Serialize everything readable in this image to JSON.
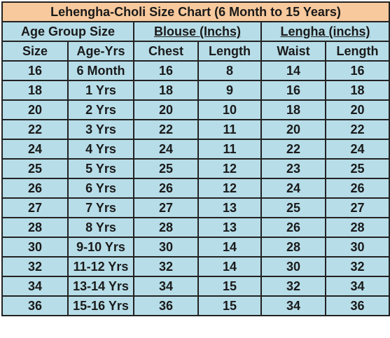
{
  "title": "Lehengha-Choli Size Chart  (6 Month to 15 Years)",
  "groups": {
    "age": "Age Group Size",
    "blouse": "Blouse (Inchs)",
    "lengha": "Lengha (inchs)"
  },
  "columns": [
    "Size",
    "Age-Yrs",
    "Chest",
    "Length",
    "Waist",
    "Length"
  ],
  "rows": [
    [
      "16",
      "6 Month",
      "16",
      "8",
      "14",
      "16"
    ],
    [
      "18",
      "1 Yrs",
      "18",
      "9",
      "16",
      "18"
    ],
    [
      "20",
      "2 Yrs",
      "20",
      "10",
      "18",
      "20"
    ],
    [
      "22",
      "3 Yrs",
      "22",
      "11",
      "20",
      "22"
    ],
    [
      "24",
      "4 Yrs",
      "24",
      "11",
      "22",
      "24"
    ],
    [
      "25",
      "5 Yrs",
      "25",
      "12",
      "23",
      "25"
    ],
    [
      "26",
      "6 Yrs",
      "26",
      "12",
      "24",
      "26"
    ],
    [
      "27",
      "7 Yrs",
      "27",
      "13",
      "25",
      "27"
    ],
    [
      "28",
      "8 Yrs",
      "28",
      "13",
      "26",
      "28"
    ],
    [
      "30",
      "9-10 Yrs",
      "30",
      "14",
      "28",
      "30"
    ],
    [
      "32",
      "11-12 Yrs",
      "32",
      "14",
      "30",
      "32"
    ],
    [
      "34",
      "13-14 Yrs",
      "34",
      "15",
      "32",
      "34"
    ],
    [
      "36",
      "15-16 Yrs",
      "36",
      "15",
      "34",
      "36"
    ]
  ],
  "colors": {
    "header_bg": "#f7c99d",
    "cell_bg": "#b7dde8",
    "border": "#222222"
  }
}
